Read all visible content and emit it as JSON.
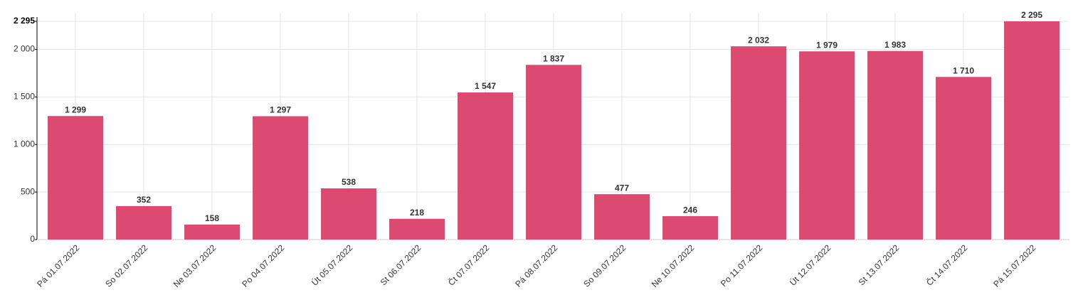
{
  "chart_data": {
    "type": "bar",
    "categories": [
      "Pá 01.07.2022",
      "So 02.07.2022",
      "Ne 03.07.2022",
      "Po 04.07.2022",
      "Út 05.07.2022",
      "St 06.07.2022",
      "Čt 07.07.2022",
      "Pá 08.07.2022",
      "So 09.07.2022",
      "Ne 10.07.2022",
      "Po 11.07.2022",
      "Út 12.07.2022",
      "St 13.07.2022",
      "Čt 14.07.2022",
      "Pá 15.07.2022"
    ],
    "values": [
      1299,
      352,
      158,
      1297,
      538,
      218,
      1547,
      1837,
      477,
      246,
      2032,
      1979,
      1983,
      1710,
      2295
    ],
    "value_labels": [
      "1 299",
      "352",
      "158",
      "1 297",
      "538",
      "218",
      "1 547",
      "1 837",
      "477",
      "246",
      "2 032",
      "1 979",
      "1 983",
      "1 710",
      "2 295"
    ],
    "color": "#dc4a72",
    "ylim": [
      0,
      2295
    ],
    "yticks": [
      0,
      500,
      {
        "value": 1000,
        "label": "1 000"
      },
      {
        "value": 1500,
        "label": "1 500"
      },
      {
        "value": 2000,
        "label": "2 000"
      },
      {
        "value": 2295,
        "label": "2 295"
      }
    ],
    "grid": true
  }
}
